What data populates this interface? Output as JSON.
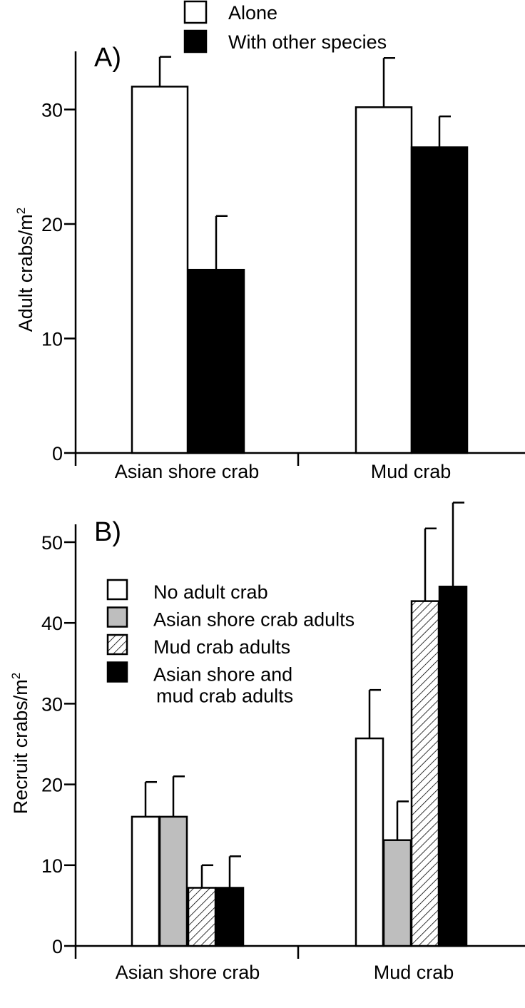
{
  "colors": {
    "axis": "#000000",
    "white_fill": "#ffffff",
    "gray_fill": "#bebebe",
    "black_fill": "#000000",
    "hatch_stroke": "#000000"
  },
  "chart_data": [
    {
      "type": "bar",
      "panel_label": "A)",
      "ylabel_main": "Adult crabs/m",
      "ylabel_sup": "2",
      "xlabel": "",
      "ylim": [
        0,
        35
      ],
      "yticks": [
        0,
        10,
        20,
        30
      ],
      "categories": [
        "Asian shore crab",
        "Mud crab"
      ],
      "legend_position": "top-center",
      "series": [
        {
          "name": "Alone",
          "fill": "white",
          "values": [
            32,
            30.2
          ],
          "errors": [
            2.6,
            4.3
          ]
        },
        {
          "name": "With other species",
          "fill": "black",
          "values": [
            16,
            26.7
          ],
          "errors": [
            4.7,
            2.7
          ]
        }
      ],
      "grid": false
    },
    {
      "type": "bar",
      "panel_label": "B)",
      "ylabel_main": "Recruit crabs/m",
      "ylabel_sup": "2",
      "xlabel": "",
      "ylim": [
        0,
        55
      ],
      "yticks": [
        0,
        10,
        20,
        30,
        40,
        50
      ],
      "categories": [
        "Asian shore crab",
        "Mud crab"
      ],
      "legend_position": "upper-left",
      "series": [
        {
          "name": "No adult crab",
          "fill": "white",
          "values": [
            16,
            25.7
          ],
          "errors": [
            4.3,
            6
          ]
        },
        {
          "name": "Asian shore crab adults",
          "fill": "gray",
          "values": [
            16,
            13.1
          ],
          "errors": [
            5,
            4.8
          ]
        },
        {
          "name": "Mud crab adults",
          "fill": "hatch",
          "values": [
            7.2,
            42.7
          ],
          "errors": [
            2.8,
            9
          ]
        },
        {
          "name": "Asian shore and\nmud crab adults",
          "fill": "black",
          "values": [
            7.2,
            44.5
          ],
          "errors": [
            3.9,
            10.4
          ]
        }
      ],
      "grid": false
    }
  ]
}
